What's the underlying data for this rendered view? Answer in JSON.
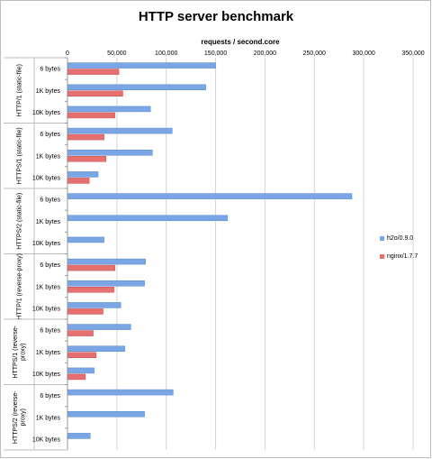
{
  "chart_data": {
    "type": "bar",
    "orientation": "horizontal",
    "title": "HTTP server benchmark",
    "xlabel": "requests / second.core",
    "xlim": [
      0,
      350000
    ],
    "xticks": [
      0,
      50000,
      100000,
      150000,
      200000,
      250000,
      300000,
      350000
    ],
    "xtick_labels": [
      "0",
      "50,000",
      "100,000",
      "150,000",
      "200,000",
      "250,000",
      "300,000",
      "350,000"
    ],
    "grid": true,
    "legend_position": "right",
    "groups": [
      {
        "label": "HTTP/1 (static-file)",
        "categories": [
          "6 bytes",
          "1K bytes",
          "10K bytes"
        ]
      },
      {
        "label": "HTTPS/1 (static-file)",
        "categories": [
          "6 bytes",
          "1K bytes",
          "10K bytes"
        ]
      },
      {
        "label": "HTTPS/2 (static-file)",
        "categories": [
          "6 bytes",
          "1K bytes",
          "10K bytes"
        ]
      },
      {
        "label": "HTTP/1 (reverse-proxy)",
        "categories": [
          "6 bytes",
          "1K bytes",
          "10K bytes"
        ]
      },
      {
        "label": "HTTPS/1 (reverse-proxy)",
        "categories": [
          "6 bytes",
          "1K bytes",
          "10K bytes"
        ]
      },
      {
        "label": "HTTPS/2 (reverse-proxy)",
        "categories": [
          "6 bytes",
          "1K bytes",
          "10K bytes"
        ]
      }
    ],
    "series": [
      {
        "name": "h2o/0.9.0",
        "color": "#7ba6e6",
        "values": [
          150000,
          140000,
          84000,
          106000,
          86000,
          31000,
          288000,
          162000,
          37000,
          79000,
          78000,
          54000,
          64000,
          58000,
          27000,
          107000,
          78000,
          23000
        ]
      },
      {
        "name": "nginx/1.7.7",
        "color": "#e66f6f",
        "values": [
          52000,
          56000,
          48000,
          37000,
          39000,
          22000,
          null,
          null,
          null,
          48000,
          47000,
          36000,
          26000,
          29000,
          18000,
          null,
          null,
          null
        ]
      }
    ]
  }
}
